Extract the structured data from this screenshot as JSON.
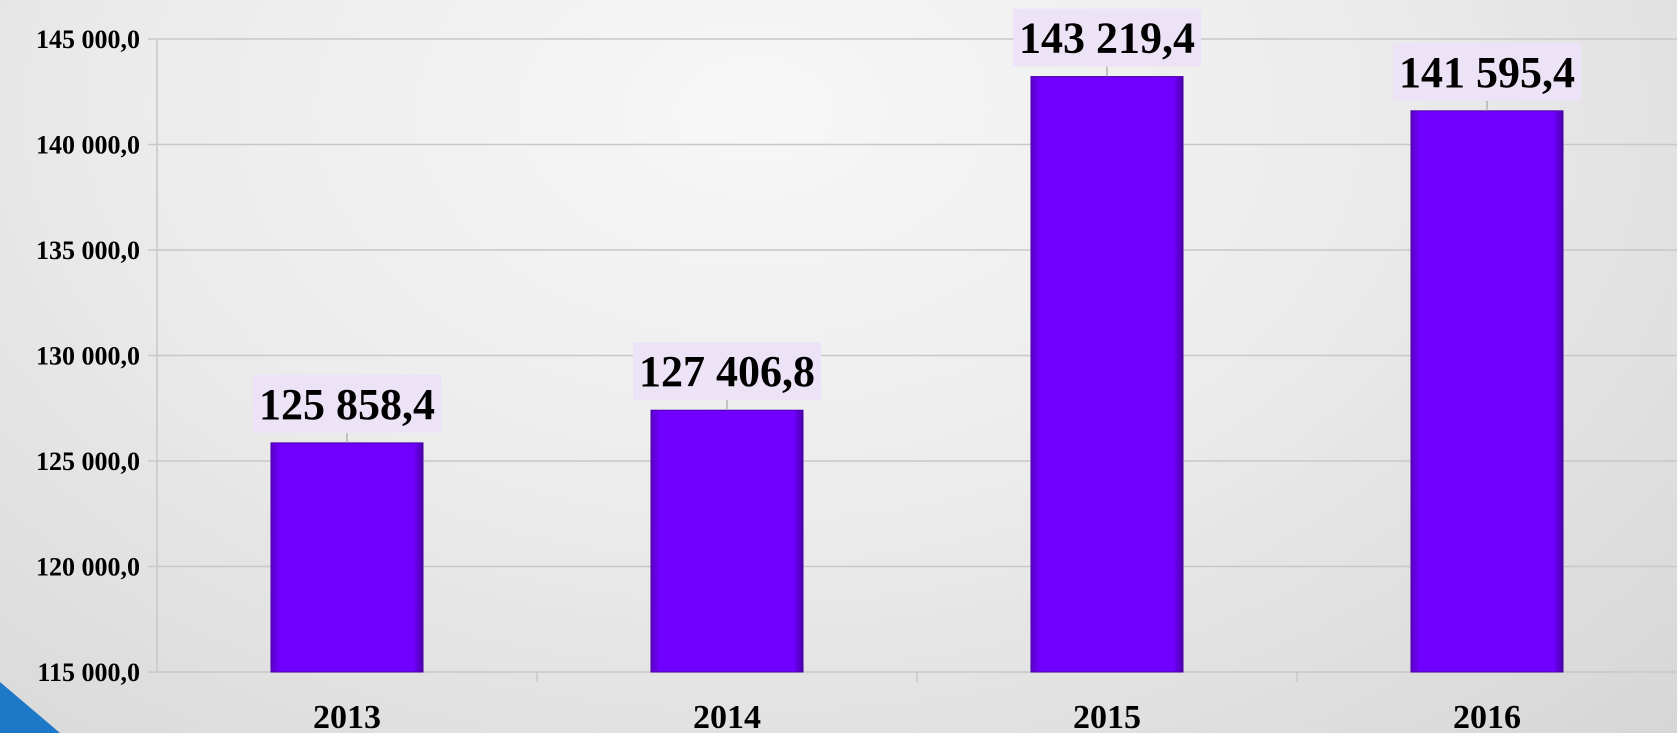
{
  "chart_data": {
    "type": "bar",
    "categories": [
      "2013",
      "2014",
      "2015",
      "2016"
    ],
    "values": [
      125858.4,
      127406.8,
      143219.4,
      141595.4
    ],
    "data_labels": [
      "125 858,4",
      "127 406,8",
      "143 219,4",
      "141 595,4"
    ],
    "ylim": [
      115000,
      145000
    ],
    "yticks": [
      115000,
      120000,
      125000,
      130000,
      135000,
      140000,
      145000
    ],
    "ytick_labels": [
      "115 000,0",
      "120 000,0",
      "125 000,0",
      "130 000,0",
      "135 000,0",
      "140 000,0",
      "145 000,0"
    ],
    "grid": true,
    "colors": {
      "bar": "#7000ff",
      "bar_edge": "#4a00a8",
      "label_bg": "#ece4f6",
      "grid": "#c8c8c8",
      "corner": "#1e78c8"
    }
  }
}
